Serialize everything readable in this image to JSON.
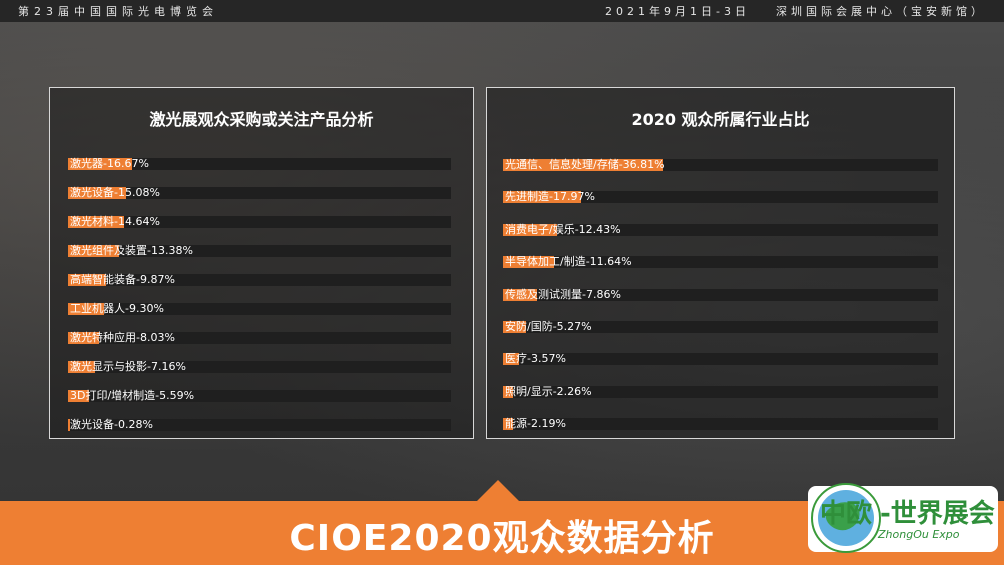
{
  "header": {
    "left_text": "第23届中国国际光电博览会",
    "date_text": "2021年9月1日-3日",
    "venue_text": "深圳国际会展中心（宝安新馆）"
  },
  "footer": {
    "title": "CIOE2020观众数据分析"
  },
  "logo": {
    "name": "中欧-世界展会",
    "subtitle": "ZhongOu Expo"
  },
  "colors": {
    "accent": "#ee7f33",
    "track": "#1f1f1f",
    "panel_border": "#d8d8d8"
  },
  "chart_data": [
    {
      "type": "bar",
      "title": "激光展观众采购或关注产品分析",
      "categories": [
        "激光器",
        "激光设备",
        "激光材料",
        "激光组件及装置",
        "高端智能装备",
        "工业机器人",
        "激光特种应用",
        "激光显示与投影",
        "3D打印/增材制造",
        "激光设备"
      ],
      "values": [
        16.67,
        15.08,
        14.64,
        13.38,
        9.87,
        9.3,
        8.03,
        7.16,
        5.59,
        0.28
      ],
      "value_labels": [
        "16.67%",
        "15.08%",
        "14.64%",
        "13.38%",
        "9.87%",
        "9.30%",
        "8.03%",
        "7.16%",
        "5.59%",
        "0.28%"
      ],
      "xlim": [
        0,
        100
      ]
    },
    {
      "type": "bar",
      "title": "2020 观众所属行业占比",
      "categories": [
        "光通信、信息处理/存储",
        "先进制造",
        "消费电子/娱乐",
        "半导体加工/制造",
        "传感及测试测量",
        "安防/国防",
        "医疗",
        "照明/显示",
        "能源"
      ],
      "values": [
        36.81,
        17.97,
        12.43,
        11.64,
        7.86,
        5.27,
        3.57,
        2.26,
        2.19
      ],
      "value_labels": [
        "36.81%",
        "17.97%",
        "12.43%",
        "11.64%",
        "7.86%",
        "5.27%",
        "3.57%",
        "2.26%",
        "2.19%"
      ],
      "xlim": [
        0,
        100
      ]
    }
  ]
}
